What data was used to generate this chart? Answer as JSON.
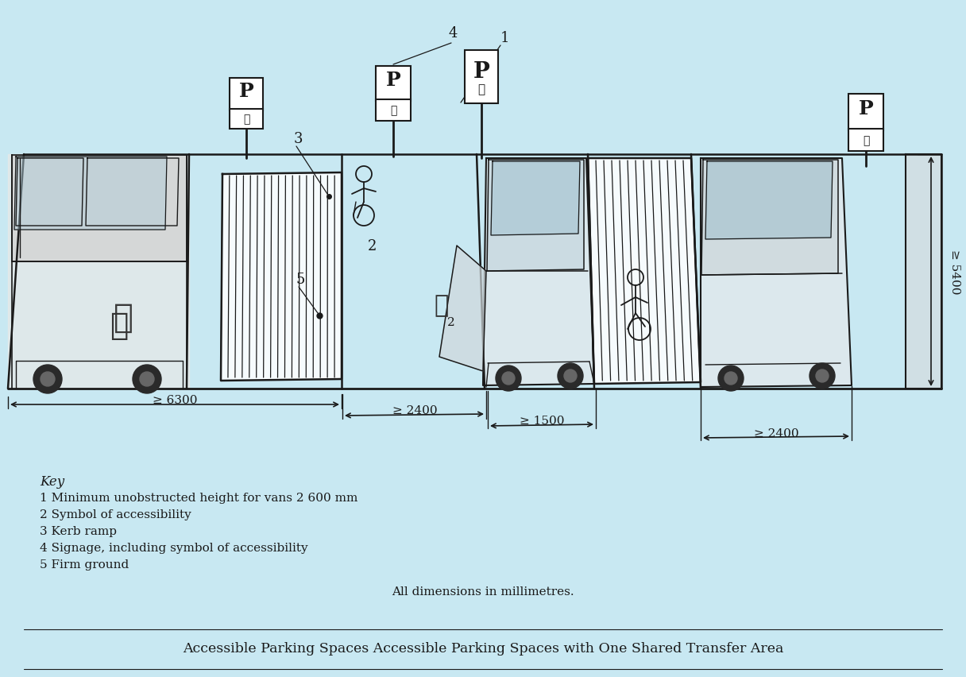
{
  "background_color": "#c8e8f2",
  "title": "Accessible Parking Spaces Accessible Parking Spaces with One Shared Transfer Area",
  "key_title": "Key",
  "key_items": [
    "1 Minimum unobstructed height for vans 2 600 mm",
    "2 Symbol of accessibility",
    "3 Kerb ramp",
    "4 Signage, including symbol of accessibility",
    "5 Firm ground"
  ],
  "dimensions_note": "All dimensions in millimetres.",
  "dim_6300": "≥ 6300",
  "dim_2400a": "≥ 2400",
  "dim_1500": "≥ 1500",
  "dim_2400b": "≥ 2400",
  "dim_5400": "≥ 5400",
  "draw_color": "#1a1a1a",
  "line_color": "#1a1a1a"
}
